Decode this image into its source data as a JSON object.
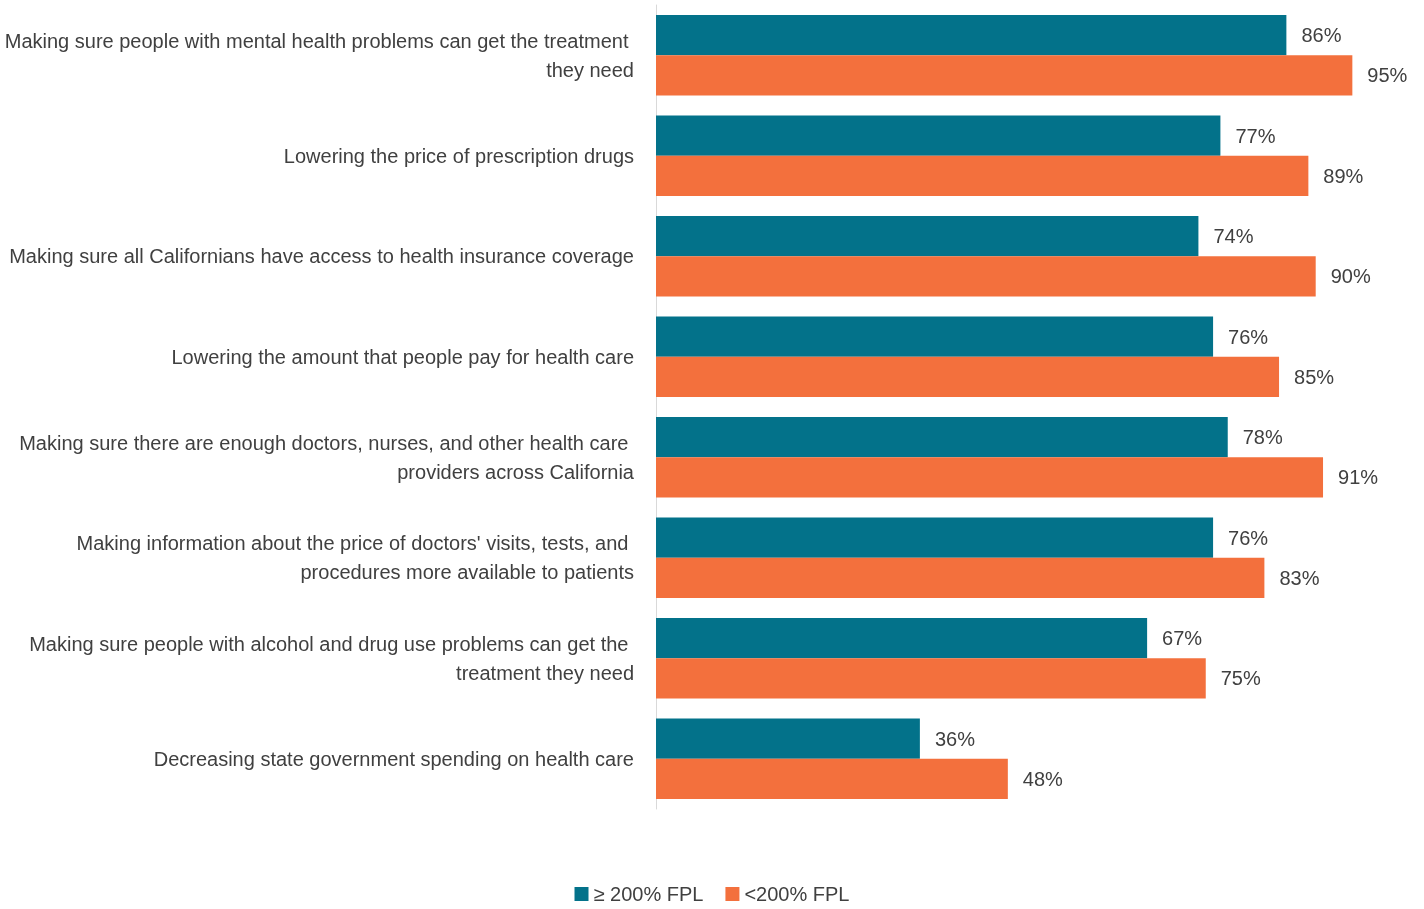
{
  "chart_data": {
    "type": "bar",
    "orientation": "horizontal",
    "categories": [
      "Making sure people with mental health problems can get the treatment they need",
      "Lowering the price of prescription drugs",
      "Making sure all Californians have access to health insurance coverage",
      "Lowering the amount that people pay for health care",
      "Making sure there are enough doctors, nurses, and other health care providers across California",
      "Making information about the price of doctors' visits, tests, and procedures more available to patients",
      "Making sure people with alcohol and drug use problems can get the treatment they need",
      "Decreasing state government spending on health care"
    ],
    "series": [
      {
        "name": "≥ 200% FPL",
        "color": "#03728a",
        "values": [
          86,
          77,
          74,
          76,
          78,
          76,
          67,
          36
        ],
        "value_labels": [
          "86%",
          "77%",
          "74%",
          "76%",
          "78%",
          "76%",
          "67%",
          "36%"
        ]
      },
      {
        "name": "<200% FPL",
        "color": "#f3703d",
        "values": [
          95,
          89,
          90,
          85,
          91,
          83,
          75,
          48
        ],
        "value_labels": [
          "95%",
          "89%",
          "90%",
          "85%",
          "91%",
          "83%",
          "75%",
          "48%"
        ]
      }
    ],
    "legend": "bottom",
    "grid": false
  }
}
